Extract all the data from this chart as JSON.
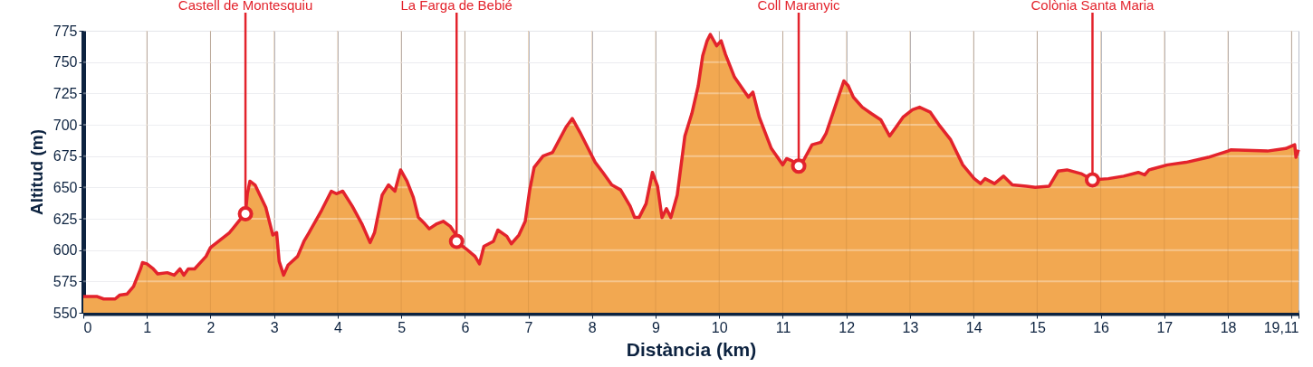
{
  "chart_data": {
    "type": "area",
    "xlabel": "Distància (km)",
    "ylabel": "Altitud (m)",
    "xlim": [
      0,
      19.11
    ],
    "ylim": [
      550,
      775
    ],
    "xticks": [
      0,
      1,
      2,
      3,
      4,
      5,
      6,
      7,
      8,
      9,
      10,
      11,
      12,
      13,
      14,
      15,
      16,
      17,
      18,
      {
        "value": 19,
        "label": null
      },
      {
        "value": 19.11,
        "label": "19,11"
      }
    ],
    "yticks": [
      550,
      575,
      600,
      625,
      650,
      675,
      700,
      725,
      750,
      775
    ],
    "grid": true,
    "line_style": "solid",
    "marker": "none",
    "annotations": [
      {
        "text": "Castell de Montesquiu",
        "x": 2.55,
        "y": 629
      },
      {
        "text": "La Farga de Bebié",
        "x": 5.87,
        "y": 607
      },
      {
        "text": "Coll Maranyic",
        "x": 11.25,
        "y": 667
      },
      {
        "text": "Colònia Santa Maria",
        "x": 15.87,
        "y": 656
      }
    ],
    "series": [
      {
        "color": "#e3232c",
        "x": [
          0,
          0.21,
          0.32,
          0.5,
          0.57,
          0.69,
          0.79,
          0.86,
          0.9,
          0.93,
          1.0,
          1.1,
          1.17,
          1.32,
          1.43,
          1.52,
          1.58,
          1.65,
          1.75,
          1.93,
          2.0,
          2.15,
          2.3,
          2.46,
          2.55,
          2.58,
          2.62,
          2.7,
          2.87,
          2.98,
          3.04,
          3.08,
          3.15,
          3.22,
          3.37,
          3.47,
          3.55,
          3.65,
          3.75,
          3.9,
          3.98,
          4.08,
          4.23,
          4.38,
          4.51,
          4.58,
          4.7,
          4.8,
          4.9,
          4.99,
          5.09,
          5.19,
          5.27,
          5.37,
          5.44,
          5.56,
          5.66,
          5.77,
          5.85,
          5.87,
          6.02,
          6.16,
          6.23,
          6.3,
          6.45,
          6.52,
          6.66,
          6.73,
          6.85,
          6.95,
          7.02,
          7.09,
          7.23,
          7.38,
          7.59,
          7.69,
          7.81,
          7.95,
          8.05,
          8.17,
          8.31,
          8.45,
          8.6,
          8.67,
          8.74,
          8.85,
          8.95,
          9.03,
          9.1,
          9.17,
          9.24,
          9.34,
          9.46,
          9.57,
          9.67,
          9.74,
          9.81,
          9.86,
          9.96,
          10.03,
          10.1,
          10.24,
          10.39,
          10.46,
          10.53,
          10.63,
          10.82,
          11.0,
          11.06,
          11.15,
          11.25,
          11.32,
          11.46,
          11.6,
          11.68,
          11.82,
          11.96,
          12.03,
          12.11,
          12.25,
          12.39,
          12.54,
          12.68,
          12.78,
          12.89,
          13.04,
          13.15,
          13.32,
          13.47,
          13.64,
          13.83,
          14.01,
          14.11,
          14.18,
          14.33,
          14.47,
          14.61,
          14.83,
          14.97,
          15.19,
          15.33,
          15.47,
          15.69,
          15.87,
          16.12,
          16.36,
          16.59,
          16.69,
          16.76,
          17.05,
          17.34,
          17.69,
          18.0,
          18.05,
          18.62,
          18.91,
          19.05,
          19.07,
          19.11
        ],
        "values": [
          563,
          563,
          561,
          561,
          564,
          565,
          571,
          580,
          585,
          590,
          589,
          585,
          581,
          582,
          580,
          585,
          580,
          585,
          585,
          595,
          602,
          608,
          614,
          624,
          629,
          645,
          655,
          652,
          634,
          612,
          614,
          591,
          580,
          588,
          595,
          607,
          614,
          623,
          632,
          647,
          645,
          647,
          635,
          621,
          606,
          614,
          644,
          652,
          647,
          664,
          655,
          642,
          626,
          621,
          617,
          621,
          623,
          619,
          613,
          607,
          601,
          595,
          589,
          603,
          607,
          616,
          611,
          605,
          612,
          623,
          648,
          666,
          675,
          678,
          698,
          705,
          694,
          680,
          670,
          662,
          652,
          648,
          635,
          626,
          626,
          637,
          662,
          651,
          626,
          633,
          626,
          644,
          691,
          709,
          731,
          755,
          767,
          772,
          763,
          767,
          756,
          738,
          727,
          722,
          726,
          706,
          681,
          668,
          673,
          671,
          666,
          671,
          684,
          686,
          693,
          714,
          735,
          731,
          722,
          714,
          709,
          704,
          691,
          698,
          706,
          712,
          714,
          710,
          699,
          688,
          668,
          657,
          653,
          657,
          653,
          659,
          652,
          651,
          650,
          651,
          663,
          664,
          661,
          656,
          657,
          659,
          662,
          660,
          664,
          668,
          670,
          674,
          679,
          680,
          679,
          681,
          684,
          674,
          680
        ]
      }
    ]
  }
}
